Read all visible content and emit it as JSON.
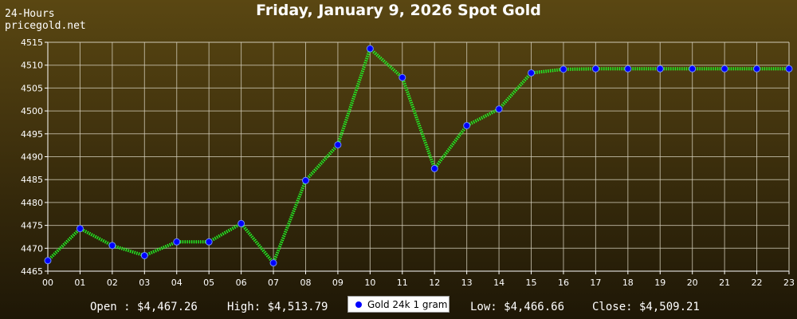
{
  "chart_data": {
    "type": "line",
    "title": "Friday, January 9, 2026 Spot Gold",
    "corner_label": [
      "24-Hours",
      "pricegold.net"
    ],
    "categories": [
      "00",
      "01",
      "02",
      "03",
      "04",
      "05",
      "06",
      "07",
      "08",
      "09",
      "10",
      "11",
      "12",
      "13",
      "14",
      "15",
      "16",
      "17",
      "18",
      "19",
      "20",
      "21",
      "22",
      "23"
    ],
    "series": [
      {
        "name": "Gold 24k 1 gram",
        "values": [
          4467.3,
          4474.3,
          4470.6,
          4468.4,
          4471.4,
          4471.4,
          4475.4,
          4466.8,
          4484.8,
          4492.6,
          4513.6,
          4507.3,
          4487.4,
          4496.8,
          4500.4,
          4508.3,
          4509.1,
          4509.2,
          4509.2,
          4509.2,
          4509.2,
          4509.2,
          4509.2,
          4509.2
        ]
      }
    ],
    "ylim": [
      4465,
      4515
    ],
    "yticks": [
      4465,
      4470,
      4475,
      4480,
      4485,
      4490,
      4495,
      4500,
      4505,
      4510,
      4515
    ],
    "grid": true,
    "legend_position": "bottom-center",
    "colors": {
      "line": "#2aff2a",
      "marker": "#0000ff",
      "grid": "#d8d3c0",
      "axis": "#ffffff"
    }
  },
  "footer": {
    "open": "Open : $4,467.26",
    "high": "High: $4,513.79",
    "low": "Low: $4,466.66",
    "close": "Close: $4,509.21"
  }
}
